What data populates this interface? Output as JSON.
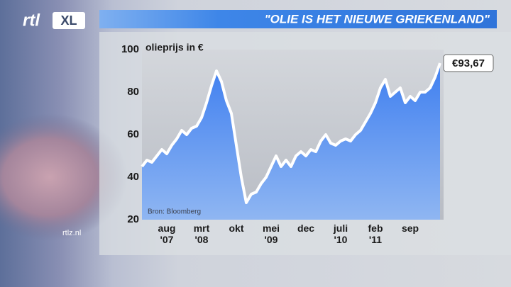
{
  "logo": {
    "main": "rtl",
    "badge": "XL"
  },
  "website": "rtlz.nl",
  "chart_data": {
    "type": "area",
    "title": "\"OLIE IS HET NIEUWE GRIEKENLAND\"",
    "y_label": "olieprijs in €",
    "source": "Bron: Bloomberg",
    "end_label": "€93,67",
    "color": "#ffffff",
    "fill": "#4d8ef0",
    "x": [
      "2007-03",
      "2007-04",
      "2007-05",
      "2007-06",
      "2007-07",
      "2007-08",
      "2007-09",
      "2007-10",
      "2007-11",
      "2007-12",
      "2008-01",
      "2008-02",
      "2008-03",
      "2008-04",
      "2008-05",
      "2008-06",
      "2008-07",
      "2008-08",
      "2008-09",
      "2008-10",
      "2008-11",
      "2008-12",
      "2009-01",
      "2009-02",
      "2009-03",
      "2009-04",
      "2009-05",
      "2009-06",
      "2009-07",
      "2009-08",
      "2009-09",
      "2009-10",
      "2009-11",
      "2009-12",
      "2010-01",
      "2010-02",
      "2010-03",
      "2010-04",
      "2010-05",
      "2010-06",
      "2010-07",
      "2010-08",
      "2010-09",
      "2010-10",
      "2010-11",
      "2010-12",
      "2011-01",
      "2011-02",
      "2011-03",
      "2011-04",
      "2011-05",
      "2011-06",
      "2011-07",
      "2011-08",
      "2011-09",
      "2011-10",
      "2011-11",
      "2011-12",
      "2012-01",
      "2012-02",
      "2012-03"
    ],
    "values": [
      45,
      48,
      47,
      50,
      53,
      51,
      55,
      58,
      62,
      60,
      63,
      64,
      68,
      75,
      83,
      90,
      85,
      76,
      70,
      55,
      40,
      28,
      32,
      33,
      37,
      40,
      45,
      50,
      45,
      48,
      45,
      50,
      52,
      50,
      53,
      52,
      57,
      60,
      56,
      55,
      57,
      58,
      57,
      60,
      62,
      66,
      70,
      75,
      82,
      86,
      78,
      80,
      82,
      75,
      78,
      76,
      80,
      80,
      82,
      87,
      93.67
    ],
    "ylim": [
      20,
      100
    ],
    "yticks": [
      20,
      40,
      60,
      80,
      100
    ],
    "xticks": [
      {
        "value": "2007-08",
        "label": "aug\n'07"
      },
      {
        "value": "2008-03",
        "label": "mrt\n'08"
      },
      {
        "value": "2008-10",
        "label": "okt"
      },
      {
        "value": "2009-05",
        "label": "mei\n'09"
      },
      {
        "value": "2009-12",
        "label": "dec"
      },
      {
        "value": "2010-07",
        "label": "juli\n'10"
      },
      {
        "value": "2011-02",
        "label": "feb\n'11"
      },
      {
        "value": "2011-09",
        "label": "sep"
      }
    ]
  }
}
